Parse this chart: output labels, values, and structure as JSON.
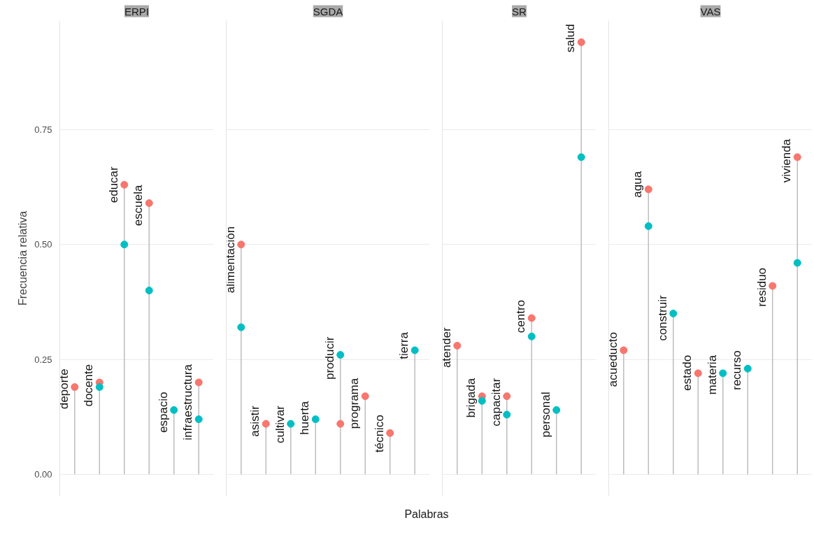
{
  "chart_data": [
    {
      "type": "lollipop",
      "title": "ERPI",
      "ylabel": "Frecuencia relativa",
      "categories": [
        "deporte",
        "docente",
        "educar",
        "escuela",
        "espacio",
        "infraestructura"
      ],
      "series": [
        {
          "color": "#f8766d",
          "values": [
            0.19,
            0.2,
            0.63,
            0.59,
            null,
            0.2
          ]
        },
        {
          "color": "#00bfc4",
          "values": [
            null,
            0.19,
            0.5,
            0.4,
            0.14,
            0.12
          ]
        }
      ],
      "ylim": [
        -0.047,
        0.987
      ],
      "yticks": [
        {
          "value": 0,
          "label": "0.00"
        },
        0.25,
        {
          "value": 0.5,
          "label": "0.50"
        },
        0.75
      ],
      "grid": "y",
      "tick_labels": "y",
      "marker": "circle"
    },
    {
      "type": "lollipop",
      "title": "SGDA",
      "xlabel": "Palabras",
      "categories": [
        "alimentación",
        "asistir",
        "cultivar",
        "huerta",
        "producir",
        "programa",
        "técnico",
        "tierra"
      ],
      "series": [
        {
          "color": "#f8766d",
          "values": [
            0.5,
            0.11,
            null,
            null,
            0.11,
            0.17,
            0.09,
            null
          ]
        },
        {
          "color": "#00bfc4",
          "values": [
            0.32,
            null,
            0.11,
            0.12,
            0.26,
            null,
            null,
            0.27
          ]
        }
      ],
      "ylim": [
        -0.047,
        0.987
      ],
      "yticks": [
        0,
        0.25,
        0.5,
        0.75
      ],
      "grid": "y",
      "tick_labels": false,
      "marker": "circle"
    },
    {
      "type": "lollipop",
      "title": "SR",
      "categories": [
        "atender",
        "brigada",
        "capacitar",
        "centro",
        "personal",
        "salud"
      ],
      "series": [
        {
          "color": "#f8766d",
          "values": [
            0.28,
            0.17,
            0.17,
            0.34,
            null,
            0.94
          ]
        },
        {
          "color": "#00bfc4",
          "values": [
            null,
            0.16,
            0.13,
            0.3,
            0.14,
            0.69
          ]
        }
      ],
      "ylim": [
        -0.047,
        0.987
      ],
      "yticks": [
        0,
        0.25,
        0.5,
        0.75
      ],
      "grid": "y",
      "tick_labels": false,
      "marker": "circle"
    },
    {
      "type": "lollipop",
      "title": "VAS",
      "categories": [
        "acueducto",
        "agua",
        "construir",
        "estado",
        "materia",
        "recurso",
        "residuo",
        "vivienda"
      ],
      "series": [
        {
          "color": "#f8766d",
          "values": [
            0.27,
            0.62,
            null,
            0.22,
            null,
            null,
            0.41,
            0.69
          ]
        },
        {
          "color": "#00bfc4",
          "values": [
            null,
            0.54,
            0.35,
            null,
            0.22,
            0.23,
            null,
            0.46
          ]
        }
      ],
      "ylim": [
        -0.047,
        0.987
      ],
      "yticks": [
        0,
        0.25,
        0.5,
        0.75
      ],
      "grid": "y",
      "tick_labels": false,
      "marker": "circle"
    }
  ]
}
